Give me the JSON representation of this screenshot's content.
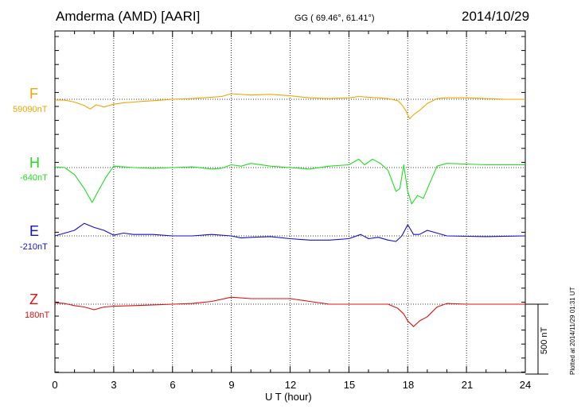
{
  "header": {
    "station": "Amderma (AMD)  [AARI]",
    "coords": "GG ( 69.46°,  61.41°)",
    "date": "2014/10/29"
  },
  "plotted_note": "Plotted at 2014/11/29 01:31  UT",
  "scale_label": "500 nT",
  "colors": {
    "F": "#f0a500",
    "H": "#1ee01e",
    "E": "#1010d0",
    "Z": "#e01010"
  },
  "chart_data": {
    "type": "line",
    "title": "Amderma (AMD)  [AARI]",
    "xlabel": "U T (hour)",
    "xlim": [
      0,
      24
    ],
    "xticks": [
      0,
      3,
      6,
      9,
      12,
      15,
      18,
      21,
      24
    ],
    "tick_labels": [
      "0",
      "3",
      "6",
      "9",
      "12",
      "15",
      "18",
      "21",
      "24"
    ],
    "scale_bar_nT": 500,
    "grid": true,
    "series": [
      {
        "name": "F",
        "baseline_label": "59090nT",
        "color": "#f0a500",
        "points": [
          [
            0,
            5
          ],
          [
            0.5,
            6
          ],
          [
            1,
            20
          ],
          [
            1.5,
            45
          ],
          [
            1.8,
            70
          ],
          [
            2.1,
            40
          ],
          [
            2.5,
            55
          ],
          [
            3,
            35
          ],
          [
            3.5,
            25
          ],
          [
            4,
            20
          ],
          [
            4.5,
            15
          ],
          [
            5,
            10
          ],
          [
            5.5,
            5
          ],
          [
            6,
            0
          ],
          [
            7,
            -5
          ],
          [
            8,
            -15
          ],
          [
            8.5,
            -20
          ],
          [
            9,
            -40
          ],
          [
            10,
            -30
          ],
          [
            11,
            -35
          ],
          [
            12,
            -25
          ],
          [
            13,
            -10
          ],
          [
            14,
            -5
          ],
          [
            15,
            -10
          ],
          [
            15.5,
            -20
          ],
          [
            16,
            -15
          ],
          [
            16.5,
            -10
          ],
          [
            17,
            -5
          ],
          [
            17.5,
            10
          ],
          [
            17.7,
            40
          ],
          [
            17.9,
            80
          ],
          [
            18.1,
            140
          ],
          [
            18.3,
            110
          ],
          [
            18.6,
            80
          ],
          [
            19,
            30
          ],
          [
            19.5,
            -5
          ],
          [
            20,
            -10
          ],
          [
            21,
            -10
          ],
          [
            22,
            -5
          ],
          [
            23,
            0
          ],
          [
            24,
            0
          ]
        ]
      },
      {
        "name": "H",
        "baseline_label": "-640nT",
        "color": "#1ee01e",
        "points": [
          [
            0,
            -5
          ],
          [
            0.5,
            0
          ],
          [
            1,
            50
          ],
          [
            1.5,
            150
          ],
          [
            1.9,
            250
          ],
          [
            2.2,
            170
          ],
          [
            2.6,
            70
          ],
          [
            3,
            -10
          ],
          [
            3.5,
            -5
          ],
          [
            4,
            0
          ],
          [
            5,
            5
          ],
          [
            6,
            0
          ],
          [
            7,
            -5
          ],
          [
            8,
            10
          ],
          [
            8.5,
            5
          ],
          [
            9,
            -20
          ],
          [
            9.5,
            -10
          ],
          [
            10,
            -30
          ],
          [
            11,
            -10
          ],
          [
            12,
            0
          ],
          [
            13,
            10
          ],
          [
            14,
            -10
          ],
          [
            15,
            -20
          ],
          [
            15.5,
            -60
          ],
          [
            15.8,
            -20
          ],
          [
            16.2,
            -60
          ],
          [
            16.6,
            -30
          ],
          [
            17,
            20
          ],
          [
            17.4,
            170
          ],
          [
            17.6,
            150
          ],
          [
            17.8,
            -20
          ],
          [
            18,
            170
          ],
          [
            18.2,
            260
          ],
          [
            18.5,
            200
          ],
          [
            18.8,
            220
          ],
          [
            19.1,
            120
          ],
          [
            19.5,
            -10
          ],
          [
            20,
            -30
          ],
          [
            22,
            -20
          ],
          [
            24,
            -20
          ]
        ]
      },
      {
        "name": "E",
        "baseline_label": "-210nT",
        "color": "#1010d0",
        "points": [
          [
            0,
            0
          ],
          [
            0.5,
            -20
          ],
          [
            1,
            -40
          ],
          [
            1.5,
            -90
          ],
          [
            2,
            -60
          ],
          [
            2.5,
            -40
          ],
          [
            3,
            -5
          ],
          [
            3.5,
            -20
          ],
          [
            4,
            -10
          ],
          [
            5,
            -10
          ],
          [
            6,
            0
          ],
          [
            7,
            0
          ],
          [
            8,
            -10
          ],
          [
            9,
            0
          ],
          [
            9.5,
            15
          ],
          [
            10,
            10
          ],
          [
            11,
            5
          ],
          [
            12,
            20
          ],
          [
            13,
            30
          ],
          [
            14,
            30
          ],
          [
            15,
            20
          ],
          [
            15.6,
            -10
          ],
          [
            16,
            20
          ],
          [
            16.5,
            10
          ],
          [
            17,
            30
          ],
          [
            17.4,
            40
          ],
          [
            17.7,
            0
          ],
          [
            18,
            -80
          ],
          [
            18.3,
            -10
          ],
          [
            18.6,
            -10
          ],
          [
            19,
            -40
          ],
          [
            19.5,
            -20
          ],
          [
            20,
            0
          ],
          [
            22,
            5
          ],
          [
            24,
            0
          ]
        ]
      },
      {
        "name": "Z",
        "baseline_label": "180nT",
        "color": "#e01010",
        "points": [
          [
            0,
            -10
          ],
          [
            0.5,
            -5
          ],
          [
            1,
            10
          ],
          [
            1.5,
            20
          ],
          [
            2,
            40
          ],
          [
            2.5,
            20
          ],
          [
            3,
            15
          ],
          [
            4,
            10
          ],
          [
            5,
            5
          ],
          [
            6,
            0
          ],
          [
            7,
            -5
          ],
          [
            8,
            -20
          ],
          [
            9,
            -50
          ],
          [
            10,
            -40
          ],
          [
            11,
            -40
          ],
          [
            12,
            -40
          ],
          [
            13,
            -20
          ],
          [
            14,
            0
          ],
          [
            15,
            0
          ],
          [
            16,
            0
          ],
          [
            17,
            0
          ],
          [
            17.5,
            30
          ],
          [
            17.8,
            70
          ],
          [
            18,
            120
          ],
          [
            18.3,
            160
          ],
          [
            18.6,
            120
          ],
          [
            19,
            90
          ],
          [
            19.5,
            20
          ],
          [
            20,
            -5
          ],
          [
            21,
            0
          ],
          [
            22,
            0
          ],
          [
            24,
            0
          ]
        ]
      }
    ]
  }
}
